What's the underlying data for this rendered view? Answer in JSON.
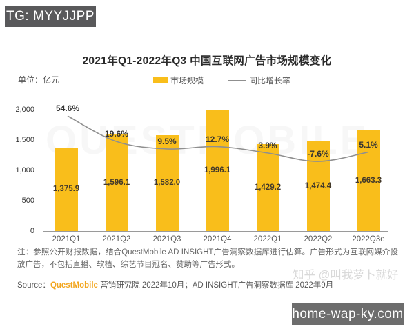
{
  "tg_badge": {
    "text": "TG: MYYJJPP"
  },
  "site_badge": {
    "text": "home-wap-ky.com"
  },
  "watermark": {
    "zhihu": "知乎 @叫我萝卜就好",
    "plot_brand": "QUESTMOBILE"
  },
  "chart": {
    "title": "2021年Q1-2022年Q3 中国互联网广告市场规模变化",
    "unit_label": "单位：亿元",
    "legend": {
      "bar_label": "市场规模",
      "line_label": "同比增长率"
    }
  },
  "chart_data": {
    "type": "combo",
    "title": "2021年Q1-2022年Q3 中国互联网广告市场规模变化",
    "unit": "亿元",
    "categories": [
      "2021Q1",
      "2021Q2",
      "2021Q3",
      "2021Q4",
      "2022Q1",
      "2022Q2",
      "2022Q3e"
    ],
    "series": [
      {
        "name": "市场规模",
        "type": "bar",
        "values": [
          1375.9,
          1596.1,
          1582.0,
          1996.1,
          1429.2,
          1474.4,
          1663.3
        ],
        "labels": [
          "1,375.9",
          "1,596.1",
          "1,582.0",
          "1,996.1",
          "1,429.2",
          "1,474.4",
          "1,663.3"
        ],
        "color": "#f9be1b"
      },
      {
        "name": "同比增长率",
        "type": "line",
        "values": [
          54.6,
          19.6,
          9.5,
          12.7,
          3.9,
          -7.6,
          5.1
        ],
        "labels": [
          "54.6%",
          "19.6%",
          "9.5%",
          "12.7%",
          "3.9%",
          "-7.6%",
          "5.1%"
        ],
        "color": "#8f8f8f"
      }
    ],
    "y_axis": {
      "ticks": [
        {
          "label": "2,000",
          "value": 2000
        },
        {
          "label": "1,500",
          "value": 1500
        },
        {
          "label": "1,000",
          "value": 1000
        },
        {
          "label": "500",
          "value": 500
        },
        {
          "label": "0",
          "value": 0
        }
      ],
      "ylim": [
        0,
        2200
      ],
      "grid": false
    },
    "legend_position": "top"
  },
  "notes": {
    "note": "注：参照公开财报数据，结合QuestMobile AD INSIGHT广告洞察数据库进行估算。广告形式为互联网媒介投放广告，不包括直播、软植、综艺节目冠名、赞助等广告形式。",
    "source_prefix": "Source：",
    "source_brand": "QuestMobile",
    "source_rest": " 营销研究院 2022年10月；AD INSIGHT广告洞察数据库 2022年9月"
  }
}
